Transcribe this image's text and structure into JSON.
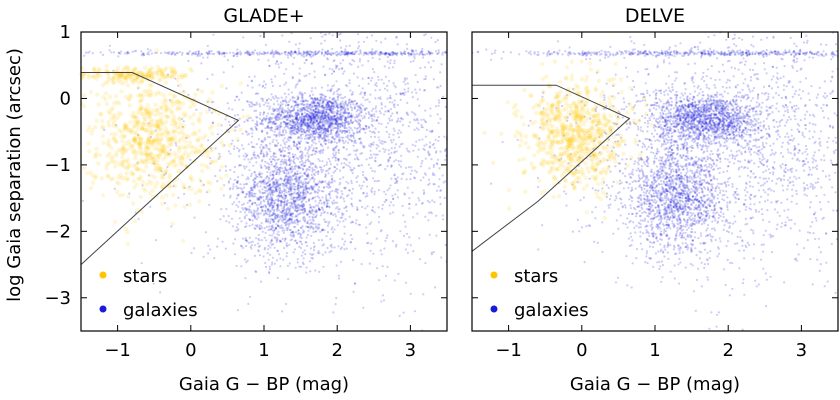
{
  "chart_data": [
    {
      "type": "scatter",
      "title": "GLADE+",
      "xlabel": "Gaia G − BP (mag)",
      "ylabel": "log Gaia separation (arcsec)",
      "xlim": [
        -1.5,
        3.5
      ],
      "ylim": [
        -3.5,
        1.0
      ],
      "x_ticks": [
        -1,
        0,
        1,
        2,
        3
      ],
      "y_ticks": [
        1,
        0,
        -1,
        -2,
        -3
      ],
      "series": [
        {
          "name": "stars",
          "color": "#ffc400",
          "clusters": [
            {
              "center": [
                -0.55,
                -0.6
              ],
              "spread": [
                0.45,
                0.45
              ],
              "weight": 1.0
            },
            {
              "center": [
                -0.8,
                0.35
              ],
              "spread": [
                0.4,
                0.06
              ],
              "weight": 0.25
            }
          ]
        },
        {
          "name": "galaxies",
          "color": "#1a1adb",
          "clusters": [
            {
              "center": [
                1.7,
                -0.3
              ],
              "spread": [
                0.35,
                0.18
              ],
              "weight": 0.9
            },
            {
              "center": [
                1.3,
                -1.5
              ],
              "spread": [
                0.35,
                0.42
              ],
              "weight": 1.0
            },
            {
              "center": [
                2.2,
                -0.7
              ],
              "spread": [
                1.1,
                0.9
              ],
              "weight": 1.3
            },
            {
              "center": [
                1.8,
                0.68
              ],
              "spread": [
                1.6,
                0.02
              ],
              "weight": 0.35
            }
          ]
        }
      ],
      "boundary": {
        "x": [
          -1.5,
          0.65,
          -0.8,
          -1.5
        ],
        "y": [
          -2.5,
          -0.33,
          0.39,
          0.39
        ]
      },
      "legend": {
        "position": "bottom-left",
        "entries": [
          "stars",
          "galaxies"
        ]
      },
      "grid": false
    },
    {
      "type": "scatter",
      "title": "DELVE",
      "xlabel": "Gaia G − BP (mag)",
      "ylabel": "",
      "xlim": [
        -1.5,
        3.5
      ],
      "ylim": [
        -3.5,
        1.0
      ],
      "x_ticks": [
        -1,
        0,
        1,
        2,
        3
      ],
      "y_ticks": [],
      "series": [
        {
          "name": "stars",
          "color": "#ffc400",
          "clusters": [
            {
              "center": [
                -0.1,
                -0.55
              ],
              "spread": [
                0.35,
                0.4
              ],
              "weight": 1.0
            }
          ]
        },
        {
          "name": "galaxies",
          "color": "#1a1adb",
          "clusters": [
            {
              "center": [
                1.7,
                -0.3
              ],
              "spread": [
                0.35,
                0.18
              ],
              "weight": 0.9
            },
            {
              "center": [
                1.3,
                -1.5
              ],
              "spread": [
                0.35,
                0.42
              ],
              "weight": 1.0
            },
            {
              "center": [
                2.2,
                -0.7
              ],
              "spread": [
                1.1,
                0.9
              ],
              "weight": 1.3
            },
            {
              "center": [
                1.8,
                0.68
              ],
              "spread": [
                1.6,
                0.02
              ],
              "weight": 0.35
            }
          ]
        }
      ],
      "boundary": {
        "x": [
          -1.5,
          -0.35,
          0.65,
          -0.6,
          -1.5
        ],
        "y": [
          0.2,
          0.2,
          -0.3,
          -1.55,
          -2.3
        ]
      },
      "legend": {
        "position": "bottom-left",
        "entries": [
          "stars",
          "galaxies"
        ]
      },
      "grid": false
    }
  ]
}
